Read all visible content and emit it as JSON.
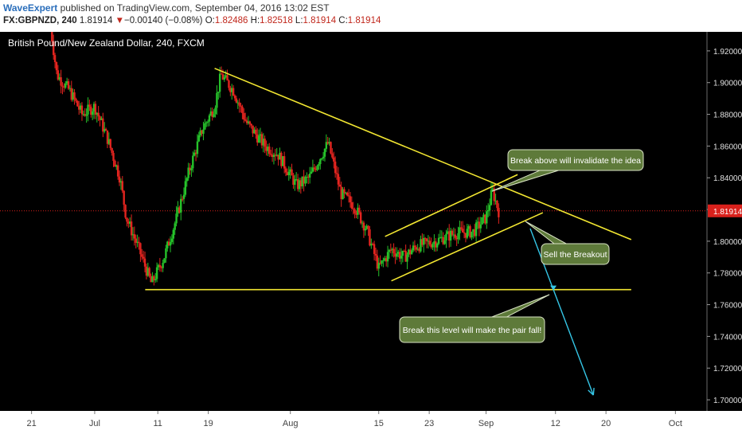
{
  "header": {
    "author": "WaveExpert",
    "published": "published on TradingView.com, September 04, 2016 13:02 EST",
    "symbol": "FX:GBPNZD, 240",
    "last": "1.81914",
    "change_arrow": "▼",
    "change": "−0.00140 (−0.08%)",
    "o_label": "O:",
    "o_value": "1.82486",
    "h_label": "H:",
    "h_value": "1.82518",
    "l_label": "L:",
    "l_value": "1.81914",
    "c_label": "C:",
    "c_value": "1.81914"
  },
  "colors": {
    "background": "#000000",
    "up": "#26c22a",
    "down": "#e3241f",
    "trendline": "#f2e631",
    "arrow": "#35c6e6",
    "callout_bg": "#5e7a3a",
    "price_tag": "#d9211c"
  },
  "chart_data": {
    "type": "candlestick",
    "title": "British Pound/New Zealand Dollar, 240, FXCM",
    "y_ticks": [
      "1.92000",
      "1.90000",
      "1.88000",
      "1.86000",
      "1.84000",
      "1.82000",
      "1.80000",
      "1.78000",
      "1.76000",
      "1.74000",
      "1.72000",
      "1.70000"
    ],
    "y_tick_values": [
      1.92,
      1.9,
      1.88,
      1.86,
      1.84,
      1.82,
      1.8,
      1.78,
      1.76,
      1.74,
      1.72,
      1.7
    ],
    "x_ticks": [
      "21",
      "Jul",
      "11",
      "19",
      "Aug",
      "15",
      "23",
      "Sep",
      "12",
      "20",
      "Oct"
    ],
    "x_tick_dates": [
      "2016-06-21",
      "2016-07-01",
      "2016-07-11",
      "2016-07-19",
      "2016-08-01",
      "2016-08-15",
      "2016-08-23",
      "2016-09-01",
      "2016-09-12",
      "2016-09-20",
      "2016-10-01"
    ],
    "ylim": [
      1.693,
      1.932
    ],
    "xlim": [
      "2016-06-16",
      "2016-10-06"
    ],
    "current_price": 1.81914,
    "current_price_label": "1.81914",
    "price_path": [
      [
        "2016-06-24",
        1.935
      ],
      [
        "2016-06-25",
        1.905
      ],
      [
        "2016-06-27",
        1.895
      ],
      [
        "2016-06-29",
        1.88
      ],
      [
        "2016-07-01",
        1.885
      ],
      [
        "2016-07-03",
        1.865
      ],
      [
        "2016-07-05",
        1.84
      ],
      [
        "2016-07-06",
        1.815
      ],
      [
        "2016-07-08",
        1.795
      ],
      [
        "2016-07-10",
        1.773
      ],
      [
        "2016-07-12",
        1.79
      ],
      [
        "2016-07-14",
        1.815
      ],
      [
        "2016-07-16",
        1.845
      ],
      [
        "2016-07-18",
        1.87
      ],
      [
        "2016-07-20",
        1.885
      ],
      [
        "2016-07-21",
        1.905
      ],
      [
        "2016-07-23",
        1.895
      ],
      [
        "2016-07-25",
        1.875
      ],
      [
        "2016-07-28",
        1.86
      ],
      [
        "2016-07-30",
        1.855
      ],
      [
        "2016-08-02",
        1.835
      ],
      [
        "2016-08-04",
        1.84
      ],
      [
        "2016-08-06",
        1.855
      ],
      [
        "2016-08-07",
        1.862
      ],
      [
        "2016-08-09",
        1.83
      ],
      [
        "2016-08-11",
        1.823
      ],
      [
        "2016-08-13",
        1.808
      ],
      [
        "2016-08-15",
        1.783
      ],
      [
        "2016-08-17",
        1.795
      ],
      [
        "2016-08-19",
        1.79
      ],
      [
        "2016-08-21",
        1.797
      ],
      [
        "2016-08-24",
        1.8
      ],
      [
        "2016-08-27",
        1.805
      ],
      [
        "2016-08-30",
        1.806
      ],
      [
        "2016-09-01",
        1.815
      ],
      [
        "2016-09-02",
        1.832
      ],
      [
        "2016-09-03",
        1.819
      ]
    ],
    "lines": [
      {
        "from": [
          "2016-07-20",
          1.909
        ],
        "to": [
          "2016-09-24",
          1.801
        ]
      },
      {
        "from": [
          "2016-08-16",
          1.803
        ],
        "to": [
          "2016-09-06",
          1.842
        ]
      },
      {
        "from": [
          "2016-08-17",
          1.775
        ],
        "to": [
          "2016-09-10",
          1.818
        ]
      },
      {
        "from": [
          "2016-07-09",
          1.7695
        ],
        "to": [
          "2016-09-24",
          1.7695
        ]
      }
    ],
    "arrow": {
      "from": [
        "2016-09-08",
        1.808
      ],
      "to": [
        "2016-09-18",
        1.703
      ]
    },
    "annotations": [
      {
        "text": "Break above will invalidate the idea"
      },
      {
        "text": "Sell the Breakout"
      },
      {
        "text": "Break this level will make the pair fall!"
      }
    ]
  }
}
